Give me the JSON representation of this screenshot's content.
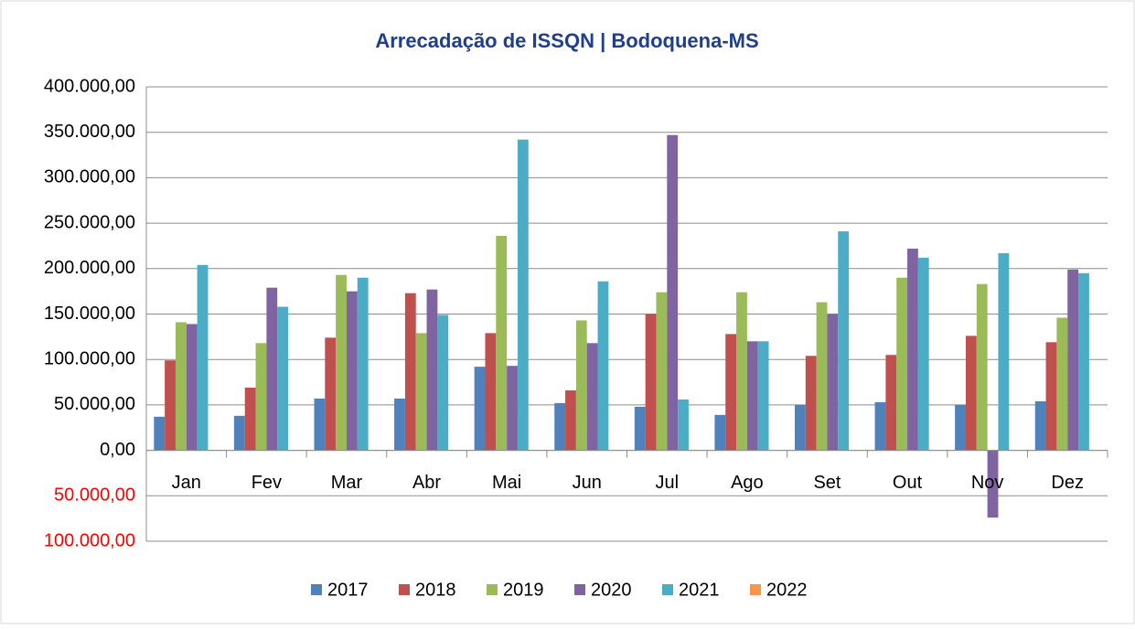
{
  "chart_data": {
    "type": "bar",
    "title": "Arrecadação de ISSQN | Bodoquena-MS",
    "categories": [
      "Jan",
      "Fev",
      "Mar",
      "Abr",
      "Mai",
      "Jun",
      "Jul",
      "Ago",
      "Set",
      "Out",
      "Nov",
      "Dez"
    ],
    "series": [
      {
        "name": "2017",
        "color": "#4f81bd",
        "values": [
          37000,
          38000,
          57000,
          57000,
          92000,
          52000,
          48000,
          39000,
          50000,
          53000,
          50000,
          54000
        ]
      },
      {
        "name": "2018",
        "color": "#c0504d",
        "values": [
          99000,
          69000,
          124000,
          173000,
          129000,
          66000,
          150000,
          128000,
          104000,
          105000,
          126000,
          119000
        ]
      },
      {
        "name": "2019",
        "color": "#9bbb59",
        "values": [
          141000,
          118000,
          193000,
          129000,
          236000,
          143000,
          174000,
          174000,
          163000,
          190000,
          183000,
          146000
        ]
      },
      {
        "name": "2020",
        "color": "#8064a2",
        "values": [
          139000,
          179000,
          175000,
          177000,
          93000,
          118000,
          347000,
          120000,
          150000,
          222000,
          -74000,
          199000
        ]
      },
      {
        "name": "2021",
        "color": "#4bacc6",
        "values": [
          204000,
          158000,
          190000,
          149000,
          342000,
          186000,
          56000,
          120000,
          241000,
          212000,
          217000,
          195000
        ]
      },
      {
        "name": "2022",
        "color": "#f79646",
        "values": [
          null,
          null,
          null,
          null,
          null,
          null,
          null,
          null,
          null,
          null,
          null,
          null
        ]
      }
    ],
    "ylim": [
      -100000,
      400000
    ],
    "yticks": [
      {
        "value": -100000,
        "label": "100.000,00"
      },
      {
        "value": -50000,
        "label": "50.000,00"
      },
      {
        "value": 0,
        "label": "0,00"
      },
      {
        "value": 50000,
        "label": "50.000,00"
      },
      {
        "value": 100000,
        "label": "100.000,00"
      },
      {
        "value": 150000,
        "label": "150.000,00"
      },
      {
        "value": 200000,
        "label": "200.000,00"
      },
      {
        "value": 250000,
        "label": "250.000,00"
      },
      {
        "value": 300000,
        "label": "300.000,00"
      },
      {
        "value": 350000,
        "label": "350.000,00"
      },
      {
        "value": 400000,
        "label": "400.000,00"
      }
    ],
    "grid": true,
    "legend": "bottom"
  }
}
